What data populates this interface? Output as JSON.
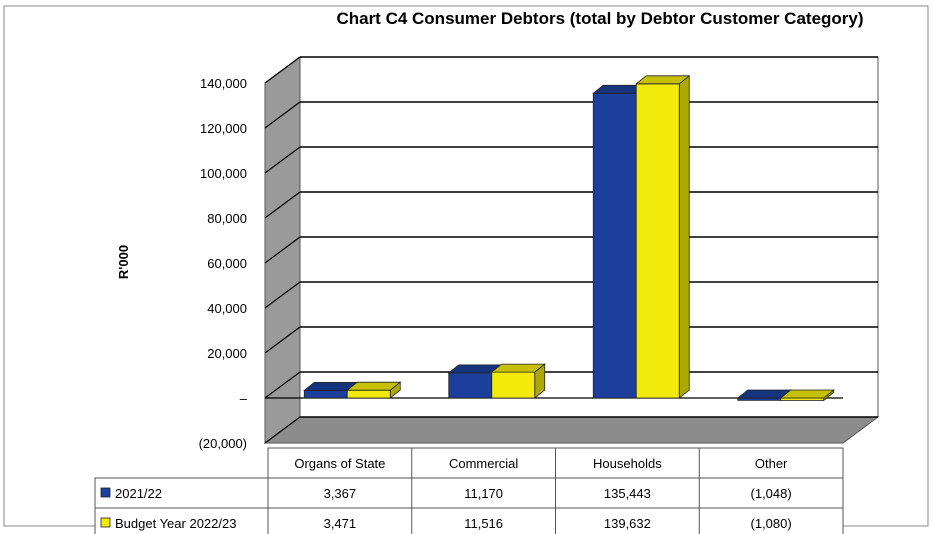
{
  "chart_data": {
    "type": "bar",
    "title": "Chart C4 Consumer Debtors (total by Debtor Customer Category)",
    "ylabel": "R'000",
    "xlabel": "",
    "ylim": [
      -20000,
      140000
    ],
    "y_ticks": [
      140000,
      120000,
      100000,
      80000,
      60000,
      40000,
      20000,
      0,
      -20000
    ],
    "y_tick_labels": [
      "140,000",
      "120,000",
      "100,000",
      "80,000",
      "60,000",
      "40,000",
      "20,000",
      "–",
      "(20,000)"
    ],
    "categories": [
      "Organs of State",
      "Commercial",
      "Households",
      "Other"
    ],
    "series": [
      {
        "name": "2021/22",
        "color": "#1b3f9a",
        "values": [
          3367,
          11170,
          135443,
          -1048
        ],
        "value_labels": [
          "3,367",
          "11,170",
          "135,443",
          "(1,048)"
        ]
      },
      {
        "name": "Budget Year 2022/23",
        "color": "#f2ea0a",
        "values": [
          3471,
          11516,
          139632,
          -1080
        ],
        "value_labels": [
          "3,471",
          "11,516",
          "139,632",
          "(1,080)"
        ]
      }
    ],
    "grid": true,
    "legend": "data-table",
    "style": "3d"
  }
}
